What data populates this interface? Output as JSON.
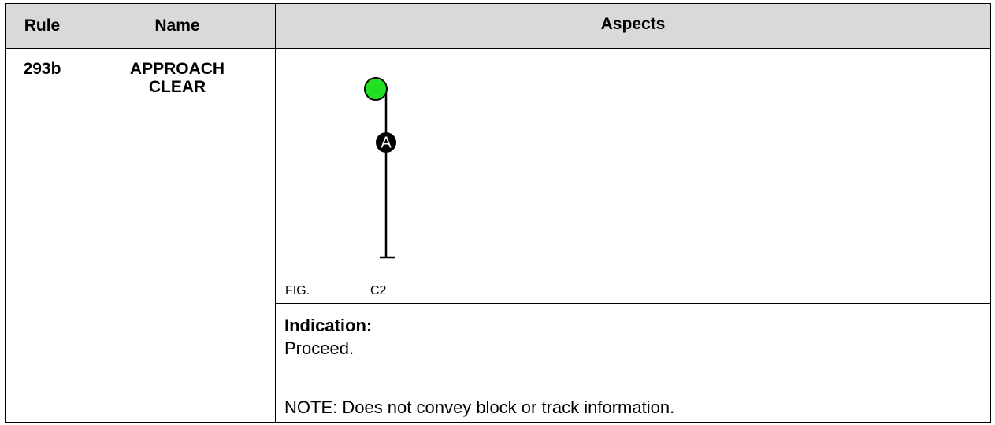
{
  "table": {
    "header": {
      "rule": "Rule",
      "name": "Name",
      "aspects": "Aspects"
    },
    "rows": [
      {
        "rule": "293b",
        "name": "APPROACH CLEAR",
        "figure": {
          "marker": "A",
          "label": "FIG.",
          "number": "C2"
        },
        "indication": {
          "heading": "Indication:",
          "text": "Proceed.",
          "note": "NOTE: Does not convey block or track information."
        }
      }
    ]
  }
}
